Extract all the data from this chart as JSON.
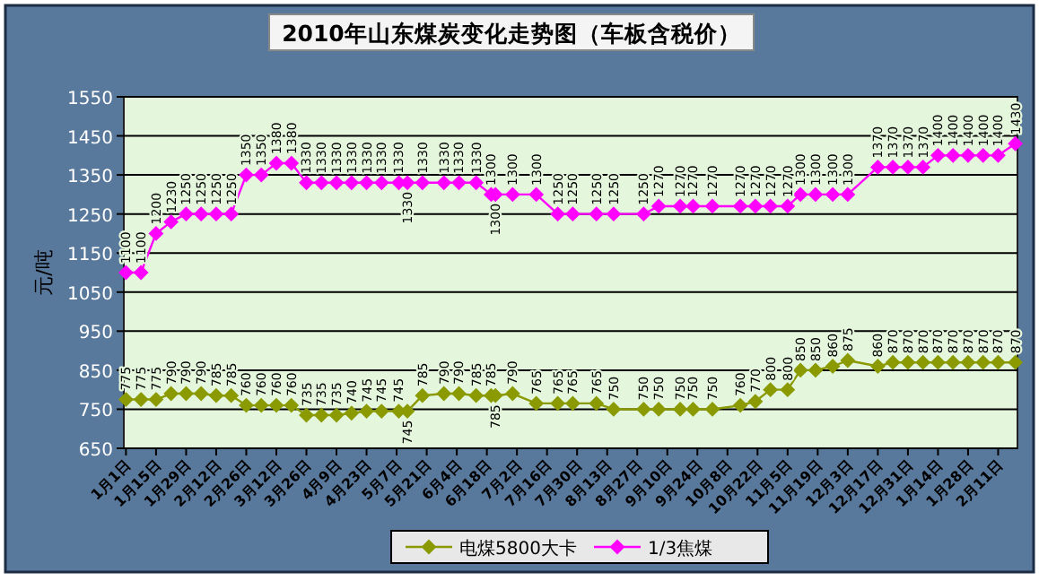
{
  "chart_data": {
    "type": "line",
    "title": "2010年山东煤炭变化走势图（车板含税价）",
    "ylabel": "元/吨",
    "x": [
      "2010-01-01",
      "2010-01-08",
      "2010-01-15",
      "2010-01-22",
      "2010-01-29",
      "2010-02-05",
      "2010-02-12",
      "2010-02-19",
      "2010-02-26",
      "2010-03-05",
      "2010-03-12",
      "2010-03-19",
      "2010-03-26",
      "2010-04-02",
      "2010-04-09",
      "2010-04-16",
      "2010-04-23",
      "2010-04-30",
      "2010-05-08",
      "2010-05-12",
      "2010-05-19",
      "2010-05-29",
      "2010-06-05",
      "2010-06-13",
      "2010-06-20",
      "2010-06-22",
      "2010-06-30",
      "2010-07-11",
      "2010-07-21",
      "2010-07-28",
      "2010-08-08",
      "2010-08-16",
      "2010-08-30",
      "2010-09-06",
      "2010-09-16",
      "2010-09-22",
      "2010-10-01",
      "2010-10-14",
      "2010-10-21",
      "2010-10-28",
      "2010-11-05",
      "2010-11-11",
      "2010-11-18",
      "2010-11-26",
      "2010-12-03",
      "2010-12-17",
      "2010-12-24",
      "2010-12-31",
      "2011-01-07",
      "2011-01-14",
      "2011-01-21",
      "2011-01-28",
      "2011-02-04",
      "2011-02-11",
      "2011-02-19"
    ],
    "series": [
      {
        "name": "电煤5800大卡",
        "color": "#8a9a00",
        "values": [
          775,
          775,
          775,
          790,
          790,
          790,
          785,
          785,
          760,
          760,
          760,
          760,
          735,
          735,
          735,
          740,
          745,
          745,
          745,
          745,
          785,
          790,
          790,
          785,
          785,
          785,
          790,
          765,
          765,
          765,
          765,
          750,
          750,
          750,
          750,
          750,
          750,
          760,
          770,
          800,
          800,
          850,
          850,
          860,
          875,
          860,
          870,
          870,
          870,
          870,
          870,
          870,
          870,
          870,
          870
        ]
      },
      {
        "name": "1/3焦煤",
        "color": "#ff00ff",
        "values": [
          1100,
          1100,
          1200,
          1230,
          1250,
          1250,
          1250,
          1250,
          1350,
          1350,
          1380,
          1380,
          1330,
          1330,
          1330,
          1330,
          1330,
          1330,
          1330,
          1330,
          1330,
          1330,
          1330,
          1330,
          1300,
          1300,
          1300,
          1300,
          1250,
          1250,
          1250,
          1250,
          1250,
          1270,
          1270,
          1270,
          1270,
          1270,
          1270,
          1270,
          1270,
          1300,
          1300,
          1300,
          1300,
          1370,
          1370,
          1370,
          1370,
          1400,
          1400,
          1400,
          1400,
          1400,
          1430
        ]
      }
    ],
    "ylim": [
      650,
      1550
    ],
    "yticks": [
      650,
      750,
      850,
      950,
      1050,
      1150,
      1250,
      1350,
      1450,
      1550
    ],
    "xlim": [
      "2009-12-31",
      "2011-02-20"
    ],
    "xticks": [
      {
        "value": "2010-01-01",
        "label": "1月1日"
      },
      {
        "value": "2010-01-15",
        "label": "1月15日"
      },
      {
        "value": "2010-01-29",
        "label": "1月29日"
      },
      {
        "value": "2010-02-12",
        "label": "2月12日"
      },
      {
        "value": "2010-02-26",
        "label": "2月26日"
      },
      {
        "value": "2010-03-12",
        "label": "3月12日"
      },
      {
        "value": "2010-03-26",
        "label": "3月26日"
      },
      {
        "value": "2010-04-09",
        "label": "4月9日"
      },
      {
        "value": "2010-04-23",
        "label": "4月23日"
      },
      {
        "value": "2010-05-07",
        "label": "5月7日"
      },
      {
        "value": "2010-05-21",
        "label": "5月21日"
      },
      {
        "value": "2010-06-04",
        "label": "6月4日"
      },
      {
        "value": "2010-06-18",
        "label": "6月18日"
      },
      {
        "value": "2010-07-02",
        "label": "7月2日"
      },
      {
        "value": "2010-07-16",
        "label": "7月16日"
      },
      {
        "value": "2010-07-30",
        "label": "7月30日"
      },
      {
        "value": "2010-08-13",
        "label": "8月13日"
      },
      {
        "value": "2010-08-27",
        "label": "8月27日"
      },
      {
        "value": "2010-09-10",
        "label": "9月10日"
      },
      {
        "value": "2010-09-24",
        "label": "9月24日"
      },
      {
        "value": "2010-10-08",
        "label": "10月8日"
      },
      {
        "value": "2010-10-22",
        "label": "10月22日"
      },
      {
        "value": "2010-11-05",
        "label": "11月5日"
      },
      {
        "value": "2010-11-19",
        "label": "11月19日"
      },
      {
        "value": "2010-12-03",
        "label": "12月3日"
      },
      {
        "value": "2010-12-17",
        "label": "12月17日"
      },
      {
        "value": "2010-12-31",
        "label": "12月31日"
      },
      {
        "value": "2011-01-14",
        "label": "1月14日"
      },
      {
        "value": "2011-01-28",
        "label": "1月28日"
      },
      {
        "value": "2011-02-11",
        "label": "2月11日"
      }
    ],
    "grid": "y",
    "legend": "bottom",
    "marker": "diamond",
    "data_labels": true
  }
}
